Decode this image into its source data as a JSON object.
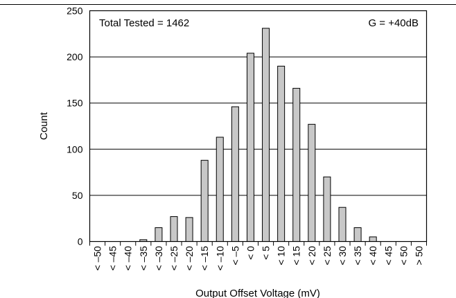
{
  "chart_data": {
    "type": "bar",
    "title": "",
    "xlabel": "Output Offset Voltage (mV)",
    "ylabel": "Count",
    "ylim": [
      0,
      250
    ],
    "yticks": [
      0,
      50,
      100,
      150,
      200,
      250
    ],
    "grid": "horizontal",
    "categories": [
      "< –50",
      "< –45",
      "< –40",
      "< –35",
      "< –30",
      "< –25",
      "< –20",
      "< –15",
      "< –10",
      "< –5",
      "< 0",
      "< 5",
      "< 10",
      "< 15",
      "< 20",
      "< 25",
      "< 30",
      "< 35",
      "< 40",
      "< 45",
      "< 50",
      "> 50"
    ],
    "values": [
      0,
      0,
      0,
      2,
      15,
      27,
      26,
      88,
      113,
      146,
      204,
      231,
      190,
      166,
      127,
      70,
      37,
      15,
      5,
      0,
      0,
      0
    ],
    "annotations": {
      "total_tested": "Total Tested = 1462",
      "gain": "G = +40dB"
    },
    "colors": {
      "bar_fill": "#c8c8c8",
      "bar_stroke": "#000000",
      "grid": "#000000"
    }
  }
}
